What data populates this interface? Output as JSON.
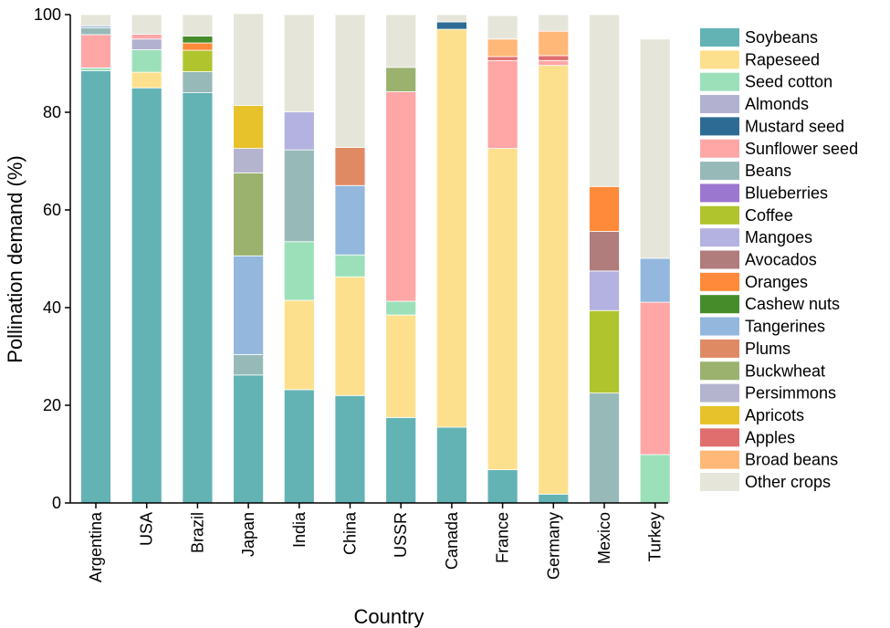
{
  "chart_data": {
    "type": "bar",
    "stacked": true,
    "xlabel": "Country",
    "ylabel": "Pollination demand (%)",
    "ylim": [
      0,
      100
    ],
    "yticks": [
      0,
      20,
      40,
      60,
      80,
      100
    ],
    "legend_position": "right",
    "categories": [
      "Argentina",
      "USA",
      "Brazil",
      "Japan",
      "India",
      "China",
      "USSR",
      "Canada",
      "France",
      "Germany",
      "Mexico",
      "Turkey"
    ],
    "series": [
      {
        "name": "Soybeans",
        "color": "#63B3B4",
        "values": [
          88.5,
          85,
          84,
          26.2,
          23.2,
          22,
          17.5,
          15.5,
          6.8,
          1.8,
          0,
          0
        ]
      },
      {
        "name": "Rapeseed",
        "color": "#FDE08E",
        "values": [
          0,
          3.2,
          0,
          0,
          18.3,
          24.3,
          21,
          81.5,
          65.8,
          87.8,
          0,
          0
        ]
      },
      {
        "name": "Seed cotton",
        "color": "#9CE0BA",
        "values": [
          0.6,
          4.6,
          0,
          0,
          12,
          4.5,
          2.8,
          0,
          0,
          0,
          0,
          9.9
        ]
      },
      {
        "name": "Almonds",
        "color": "#B2B2D0",
        "values": [
          0,
          2.2,
          0,
          0,
          0,
          0,
          0,
          0,
          0,
          0,
          0,
          0
        ]
      },
      {
        "name": "Mustard seed",
        "color": "#2E6B94",
        "values": [
          0,
          0,
          0,
          0,
          0,
          0,
          0,
          1.5,
          0,
          0,
          0,
          0
        ]
      },
      {
        "name": "Sunflower seed",
        "color": "#FFA6A6",
        "values": [
          6.8,
          1,
          0,
          0,
          0,
          0,
          42.9,
          0,
          18,
          1,
          0,
          31.2
        ]
      },
      {
        "name": "Beans",
        "color": "#97BAB8",
        "values": [
          1.4,
          0,
          4.3,
          4.2,
          18.8,
          0,
          0,
          0,
          0,
          0,
          22.5,
          0
        ]
      },
      {
        "name": "Blueberries",
        "color": "#9B77CF",
        "values": [
          0,
          0,
          0,
          0,
          0,
          0,
          0,
          0,
          0,
          0,
          0,
          0
        ]
      },
      {
        "name": "Coffee",
        "color": "#B0C42E",
        "values": [
          0,
          0,
          4.4,
          0,
          0,
          0,
          0,
          0,
          0,
          0,
          16.9,
          0
        ]
      },
      {
        "name": "Mangoes",
        "color": "#B4B2E0",
        "values": [
          0,
          0,
          0,
          0,
          7.8,
          0,
          0,
          0,
          0,
          0,
          8.1,
          0
        ]
      },
      {
        "name": "Avocados",
        "color": "#B07C7C",
        "values": [
          0,
          0,
          0,
          0,
          0,
          0,
          0,
          0,
          0,
          0,
          8.1,
          0
        ]
      },
      {
        "name": "Oranges",
        "color": "#FF8A3A",
        "values": [
          0,
          0,
          1.5,
          0,
          0,
          0,
          0,
          0,
          0,
          0,
          9.2,
          0
        ]
      },
      {
        "name": "Cashew nuts",
        "color": "#468C2A",
        "values": [
          0,
          0,
          1.4,
          0,
          0,
          0,
          0,
          0,
          0,
          0,
          0,
          0
        ]
      },
      {
        "name": "Tangerines",
        "color": "#93B7DD",
        "values": [
          0.4,
          0,
          0,
          20.2,
          0,
          14.2,
          0,
          0,
          0,
          0,
          0,
          9
        ]
      },
      {
        "name": "Plums",
        "color": "#E08A64",
        "values": [
          0,
          0,
          0,
          0,
          0,
          7.8,
          0,
          0,
          0,
          0,
          0,
          0
        ]
      },
      {
        "name": "Buckwheat",
        "color": "#9AB26E",
        "values": [
          0,
          0,
          0,
          17,
          0,
          0,
          5,
          0,
          0,
          0,
          0,
          0
        ]
      },
      {
        "name": "Persimmons",
        "color": "#B4B4CE",
        "values": [
          0,
          0,
          0,
          5,
          0,
          0,
          0,
          0,
          0,
          0,
          0,
          0
        ]
      },
      {
        "name": "Apricots",
        "color": "#E8C22A",
        "values": [
          0,
          0,
          0,
          8.8,
          0,
          0,
          0,
          0,
          0,
          0,
          0,
          0
        ]
      },
      {
        "name": "Apples",
        "color": "#E06E6E",
        "values": [
          0,
          0,
          0,
          0,
          0,
          0,
          0,
          0,
          0.8,
          1,
          0,
          0
        ]
      },
      {
        "name": "Broad beans",
        "color": "#FFB878",
        "values": [
          0,
          0,
          0,
          0,
          0,
          0,
          0,
          0,
          3.6,
          5,
          0,
          0
        ]
      },
      {
        "name": "Other crops",
        "color": "#E5E5DA",
        "values": [
          2.3,
          4,
          4.4,
          18.8,
          19.9,
          27.2,
          10.8,
          1.5,
          4.8,
          3.4,
          35.2,
          44.9
        ]
      }
    ]
  }
}
